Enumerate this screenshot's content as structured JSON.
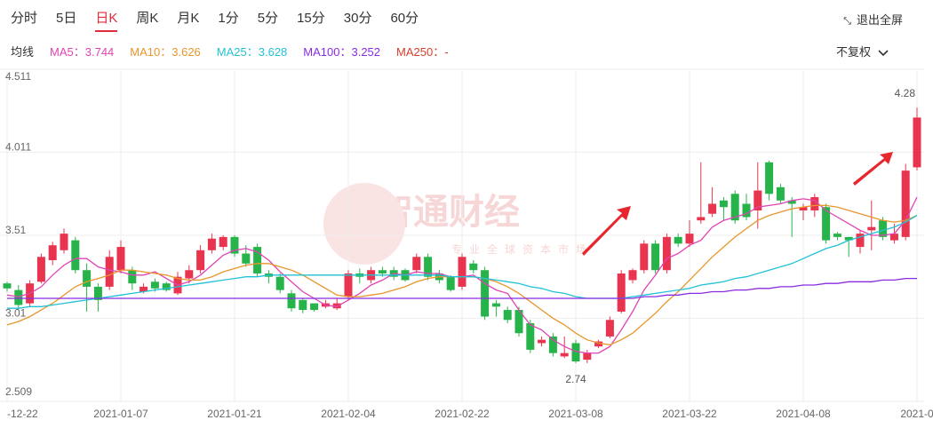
{
  "toolbar": {
    "tabs": [
      "分时",
      "5日",
      "日K",
      "周K",
      "月K",
      "1分",
      "5分",
      "15分",
      "30分",
      "60分"
    ],
    "active_tab": 2,
    "fullscreen": "退出全屏"
  },
  "legend": {
    "title": "均线",
    "items": [
      {
        "label": "MA5：3.744",
        "color": "#e043b4"
      },
      {
        "label": "MA10：3.626",
        "color": "#e8962b"
      },
      {
        "label": "MA25：3.628",
        "color": "#22c1d6"
      },
      {
        "label": "MA100：3.252",
        "color": "#8a2be2"
      },
      {
        "label": "MA250：-",
        "color": "#d6402c"
      }
    ],
    "adjust": "不复权"
  },
  "watermark": {
    "title": "智通财经",
    "subtitle": "专业全球资本市场"
  },
  "chart_data": {
    "type": "candlestick",
    "categories": [
      "-12-22",
      null,
      null,
      null,
      null,
      null,
      null,
      null,
      null,
      null,
      "2021-01-07",
      null,
      null,
      null,
      null,
      null,
      null,
      null,
      null,
      null,
      "2021-01-21",
      null,
      null,
      null,
      null,
      null,
      null,
      null,
      null,
      null,
      "2021-02-04",
      null,
      null,
      null,
      null,
      null,
      null,
      null,
      null,
      null,
      "2021-02-22",
      null,
      null,
      null,
      null,
      null,
      null,
      null,
      null,
      null,
      "2021-03-08",
      null,
      null,
      null,
      null,
      null,
      null,
      null,
      null,
      null,
      "2021-03-22",
      null,
      null,
      null,
      null,
      null,
      null,
      null,
      null,
      null,
      "2021-04-08",
      null,
      null,
      null,
      null,
      null,
      null,
      null,
      null,
      null,
      "2021-0"
    ],
    "open": [
      3.22,
      3.18,
      3.1,
      3.23,
      3.36,
      3.42,
      3.48,
      3.3,
      3.2,
      3.2,
      3.3,
      3.3,
      3.17,
      3.23,
      3.22,
      3.16,
      3.25,
      3.3,
      3.42,
      3.44,
      3.5,
      3.4,
      3.44,
      3.28,
      3.26,
      3.16,
      3.12,
      3.1,
      3.08,
      3.07,
      3.14,
      3.28,
      3.24,
      3.3,
      3.3,
      3.3,
      3.3,
      3.38,
      3.28,
      3.26,
      3.2,
      3.34,
      3.3,
      3.1,
      3.06,
      3.06,
      2.98,
      2.86,
      2.9,
      2.78,
      2.86,
      2.76,
      2.84,
      2.9,
      3.05,
      3.24,
      3.3,
      3.46,
      3.3,
      3.5,
      3.46,
      3.6,
      3.64,
      3.72,
      3.76,
      3.7,
      3.66,
      3.95,
      3.8,
      3.72,
      3.66,
      3.66,
      3.68,
      3.52,
      3.5,
      3.44,
      3.54,
      3.6,
      3.48,
      3.5,
      3.92
    ],
    "high": [
      3.23,
      3.21,
      3.24,
      3.4,
      3.47,
      3.55,
      3.5,
      3.34,
      3.22,
      3.42,
      3.48,
      3.32,
      3.22,
      3.25,
      3.23,
      3.29,
      3.33,
      3.45,
      3.52,
      3.51,
      3.51,
      3.45,
      3.46,
      3.3,
      3.28,
      3.18,
      3.13,
      3.1,
      3.12,
      3.13,
      3.3,
      3.31,
      3.32,
      3.32,
      3.32,
      3.31,
      3.4,
      3.4,
      3.3,
      3.27,
      3.4,
      3.36,
      3.32,
      3.12,
      3.08,
      3.08,
      3.0,
      2.9,
      2.92,
      2.9,
      2.88,
      2.82,
      2.88,
      3.02,
      3.3,
      3.31,
      3.48,
      3.48,
      3.52,
      3.52,
      3.6,
      3.95,
      3.8,
      3.74,
      3.78,
      3.76,
      3.95,
      3.96,
      3.82,
      3.74,
      3.7,
      3.76,
      3.7,
      3.53,
      3.5,
      3.54,
      3.72,
      3.62,
      3.58,
      3.94,
      4.28
    ],
    "low": [
      3.17,
      3.06,
      3.08,
      3.22,
      3.33,
      3.4,
      3.28,
      3.05,
      3.05,
      3.18,
      3.28,
      3.18,
      3.16,
      3.17,
      3.17,
      3.15,
      3.22,
      3.28,
      3.4,
      3.42,
      3.38,
      3.32,
      3.26,
      3.22,
      3.16,
      3.05,
      3.04,
      3.05,
      3.07,
      3.06,
      3.12,
      3.22,
      3.22,
      3.26,
      3.24,
      3.23,
      3.28,
      3.24,
      3.22,
      3.17,
      3.18,
      3.28,
      3.0,
      3.02,
      2.98,
      2.9,
      2.8,
      2.84,
      2.78,
      2.77,
      2.74,
      2.74,
      2.83,
      2.89,
      3.04,
      3.22,
      3.28,
      3.28,
      3.28,
      3.44,
      3.44,
      3.58,
      3.62,
      3.6,
      3.58,
      3.6,
      3.55,
      3.72,
      3.7,
      3.5,
      3.6,
      3.62,
      3.46,
      3.48,
      3.38,
      3.4,
      3.42,
      3.48,
      3.46,
      3.48,
      3.9
    ],
    "close": [
      3.19,
      3.09,
      3.22,
      3.38,
      3.45,
      3.52,
      3.3,
      3.2,
      3.12,
      3.38,
      3.44,
      3.22,
      3.2,
      3.19,
      3.18,
      3.26,
      3.3,
      3.42,
      3.49,
      3.5,
      3.4,
      3.34,
      3.28,
      3.26,
      3.18,
      3.07,
      3.06,
      3.06,
      3.1,
      3.1,
      3.28,
      3.26,
      3.3,
      3.28,
      3.26,
      3.24,
      3.38,
      3.26,
      3.24,
      3.18,
      3.38,
      3.3,
      3.02,
      3.08,
      3.0,
      2.92,
      2.82,
      2.88,
      2.8,
      2.8,
      2.75,
      2.8,
      2.87,
      3.0,
      3.28,
      3.3,
      3.46,
      3.3,
      3.5,
      3.46,
      3.52,
      3.62,
      3.7,
      3.68,
      3.6,
      3.62,
      3.78,
      3.76,
      3.72,
      3.7,
      3.68,
      3.74,
      3.48,
      3.5,
      3.48,
      3.52,
      3.56,
      3.5,
      3.52,
      3.9,
      4.22
    ],
    "up_color": "#e8344e",
    "down_color": "#26b34a",
    "ma_series": [
      {
        "color": "#e043b4",
        "values": [
          3.15,
          3.14,
          3.16,
          3.2,
          3.27,
          3.33,
          3.37,
          3.37,
          3.32,
          3.3,
          3.29,
          3.27,
          3.27,
          3.29,
          3.25,
          3.21,
          3.23,
          3.27,
          3.33,
          3.39,
          3.42,
          3.43,
          3.41,
          3.36,
          3.29,
          3.23,
          3.17,
          3.13,
          3.09,
          3.08,
          3.12,
          3.16,
          3.21,
          3.24,
          3.28,
          3.27,
          3.29,
          3.28,
          3.28,
          3.26,
          3.26,
          3.27,
          3.22,
          3.18,
          3.16,
          3.06,
          2.97,
          2.94,
          2.88,
          2.84,
          2.81,
          2.8,
          2.8,
          2.84,
          2.94,
          3.05,
          3.18,
          3.27,
          3.37,
          3.4,
          3.45,
          3.48,
          3.56,
          3.6,
          3.62,
          3.64,
          3.68,
          3.69,
          3.7,
          3.72,
          3.73,
          3.72,
          3.66,
          3.62,
          3.58,
          3.54,
          3.51,
          3.51,
          3.52,
          3.6,
          3.74
        ]
      },
      {
        "color": "#e8962b",
        "values": [
          2.97,
          2.99,
          3.02,
          3.06,
          3.1,
          3.15,
          3.2,
          3.23,
          3.25,
          3.27,
          3.3,
          3.3,
          3.29,
          3.28,
          3.27,
          3.25,
          3.24,
          3.24,
          3.26,
          3.29,
          3.31,
          3.33,
          3.34,
          3.34,
          3.32,
          3.3,
          3.27,
          3.23,
          3.19,
          3.15,
          3.14,
          3.14,
          3.15,
          3.16,
          3.18,
          3.2,
          3.23,
          3.25,
          3.26,
          3.26,
          3.26,
          3.26,
          3.25,
          3.23,
          3.2,
          3.16,
          3.11,
          3.06,
          3.01,
          2.97,
          2.92,
          2.88,
          2.86,
          2.85,
          2.88,
          2.92,
          2.98,
          3.04,
          3.11,
          3.17,
          3.24,
          3.31,
          3.38,
          3.44,
          3.5,
          3.55,
          3.6,
          3.63,
          3.65,
          3.67,
          3.68,
          3.69,
          3.69,
          3.68,
          3.66,
          3.64,
          3.62,
          3.6,
          3.59,
          3.6,
          3.63
        ]
      },
      {
        "color": "#22c1d6",
        "values": [
          3.07,
          3.07,
          3.08,
          3.08,
          3.09,
          3.1,
          3.11,
          3.12,
          3.13,
          3.14,
          3.15,
          3.16,
          3.17,
          3.18,
          3.19,
          3.2,
          3.21,
          3.22,
          3.23,
          3.24,
          3.25,
          3.26,
          3.26,
          3.27,
          3.27,
          3.27,
          3.27,
          3.27,
          3.27,
          3.27,
          3.27,
          3.27,
          3.27,
          3.27,
          3.27,
          3.27,
          3.27,
          3.27,
          3.27,
          3.26,
          3.26,
          3.26,
          3.25,
          3.24,
          3.23,
          3.22,
          3.2,
          3.19,
          3.17,
          3.16,
          3.14,
          3.13,
          3.13,
          3.13,
          3.13,
          3.14,
          3.15,
          3.16,
          3.17,
          3.18,
          3.19,
          3.21,
          3.22,
          3.23,
          3.25,
          3.26,
          3.28,
          3.3,
          3.32,
          3.34,
          3.37,
          3.4,
          3.43,
          3.45,
          3.48,
          3.5,
          3.52,
          3.54,
          3.56,
          3.59,
          3.63
        ]
      },
      {
        "color": "#8a2be2",
        "values": [
          3.13,
          3.13,
          3.13,
          3.13,
          3.13,
          3.13,
          3.13,
          3.13,
          3.13,
          3.13,
          3.13,
          3.13,
          3.13,
          3.13,
          3.13,
          3.13,
          3.13,
          3.13,
          3.13,
          3.13,
          3.13,
          3.13,
          3.13,
          3.13,
          3.13,
          3.13,
          3.13,
          3.13,
          3.13,
          3.13,
          3.13,
          3.13,
          3.13,
          3.13,
          3.13,
          3.13,
          3.13,
          3.13,
          3.13,
          3.13,
          3.13,
          3.13,
          3.13,
          3.13,
          3.13,
          3.13,
          3.13,
          3.13,
          3.13,
          3.13,
          3.13,
          3.13,
          3.13,
          3.13,
          3.13,
          3.13,
          3.14,
          3.14,
          3.15,
          3.15,
          3.16,
          3.16,
          3.17,
          3.17,
          3.18,
          3.18,
          3.19,
          3.19,
          3.2,
          3.2,
          3.21,
          3.21,
          3.22,
          3.22,
          3.23,
          3.23,
          3.23,
          3.24,
          3.24,
          3.25,
          3.25
        ]
      }
    ],
    "high_label": "4.28",
    "low_label": "2.74",
    "ylim": [
      2.509,
      4.511
    ],
    "yticks": [
      2.509,
      3.01,
      3.51,
      4.011,
      4.511
    ],
    "grid": true
  }
}
